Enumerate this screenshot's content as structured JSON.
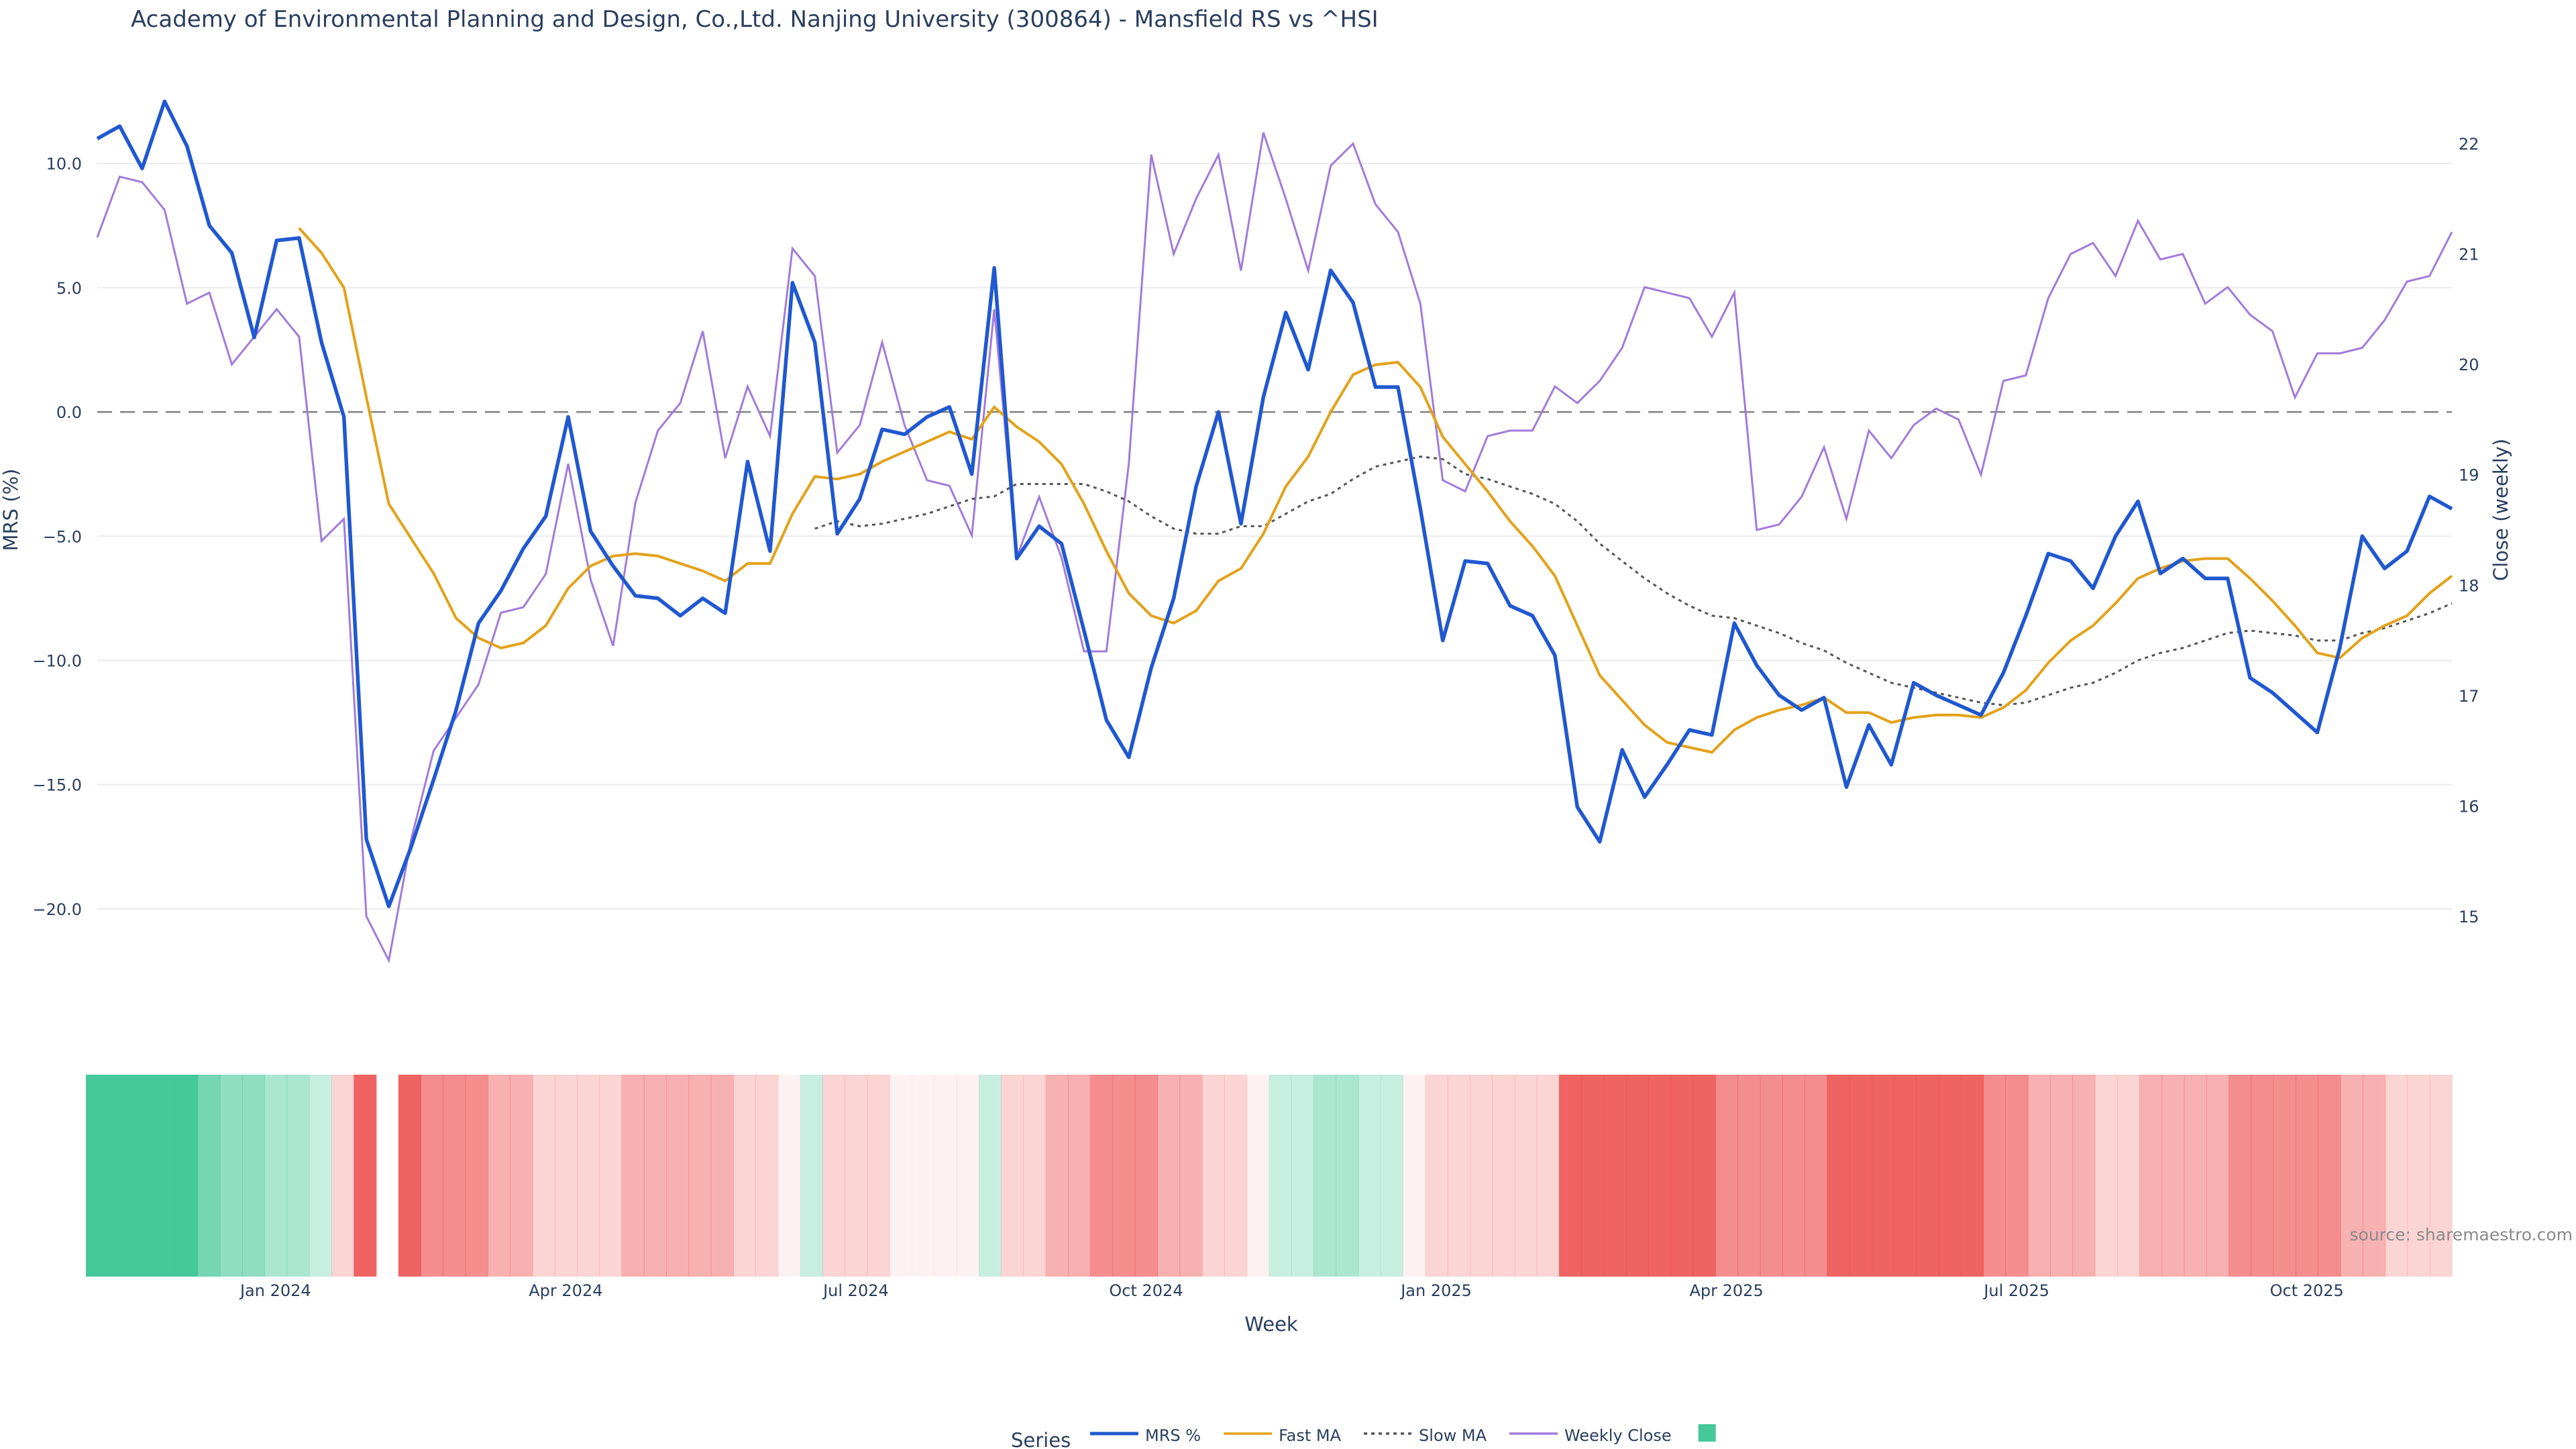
{
  "chart_data": {
    "type": "line",
    "title": "Academy of Environmental Planning and Design, Co.,Ltd. Nanjing University (300864) - Mansfield RS vs ^HSI",
    "xlabel": "Week",
    "ylabel_left": "MRS (%)",
    "ylabel_right": "Close (weekly)",
    "ylim_left": [
      -22.3,
      12.8
    ],
    "ylim_right": [
      14.55,
      22.45
    ],
    "left_ticks": [
      10,
      5,
      0,
      -5,
      -10,
      -15,
      -20
    ],
    "left_tick_labels": [
      "10.0",
      "5.0",
      "0.0",
      "−5.0",
      "−10.0",
      "−15.0",
      "−20.0"
    ],
    "right_ticks": [
      15,
      16,
      17,
      18,
      19,
      20,
      21,
      22
    ],
    "right_tick_labels": [
      "15",
      "16",
      "17",
      "18",
      "19",
      "20",
      "21",
      "22"
    ],
    "x_ticks": [
      8,
      21,
      34,
      47,
      60,
      73,
      86,
      99
    ],
    "x_tick_labels": [
      "Jan 2024",
      "Apr 2024",
      "Jul 2024",
      "Oct 2024",
      "Jan 2025",
      "Apr 2025",
      "Jul 2025",
      "Oct 2025"
    ],
    "zero_line": 0,
    "source": "source: sharemaestro.com",
    "legend_title": "Series",
    "mrs": [
      11.0,
      11.5,
      9.8,
      12.5,
      10.7,
      7.5,
      6.4,
      3.0,
      6.9,
      7.0,
      2.8,
      -0.2,
      -17.2,
      -19.9,
      -17.5,
      -14.8,
      -12.0,
      -8.5,
      -7.2,
      -5.5,
      -4.2,
      -0.2,
      -4.8,
      -6.2,
      -7.4,
      -7.5,
      -8.2,
      -7.5,
      -8.1,
      -2.0,
      -5.6,
      5.2,
      2.8,
      -4.9,
      -3.5,
      -0.7,
      -0.9,
      -0.2,
      0.2,
      -2.5,
      5.8,
      -5.9,
      -4.6,
      -5.3,
      -8.8,
      -12.4,
      -13.9,
      -10.3,
      -7.5,
      -3.0,
      0.0,
      -4.5,
      0.6,
      4.0,
      1.7,
      5.7,
      4.4,
      1.0,
      1.0,
      -3.9,
      -9.2,
      -6.0,
      -6.1,
      -7.8,
      -8.2,
      -9.8,
      -15.9,
      -17.3,
      -13.6,
      -15.5,
      -14.2,
      -12.8,
      -13.0,
      -8.5,
      -10.2,
      -11.4,
      -12.0,
      -11.5,
      -15.1,
      -12.6,
      -14.2,
      -10.9,
      -11.4,
      -11.8,
      -12.2,
      -10.5,
      -8.2,
      -5.7,
      -6.0,
      -7.1,
      -5.0,
      -3.6,
      -6.5,
      -5.9,
      -6.7,
      -6.7,
      -10.7,
      -11.3,
      -12.1,
      -12.9,
      -9.5,
      -5.0,
      -6.3,
      -5.6,
      -3.4,
      -3.9
    ],
    "fast_ma": [
      null,
      null,
      null,
      null,
      null,
      null,
      null,
      null,
      null,
      7.4,
      6.4,
      5.0,
      0.6,
      -3.7,
      -5.1,
      -6.5,
      -8.3,
      -9.1,
      -9.5,
      -9.3,
      -8.6,
      -7.1,
      -6.2,
      -5.8,
      -5.7,
      -5.8,
      -6.1,
      -6.4,
      -6.8,
      -6.1,
      -6.1,
      -4.1,
      -2.6,
      -2.7,
      -2.5,
      -2.0,
      -1.6,
      -1.2,
      -0.8,
      -1.1,
      0.2,
      -0.6,
      -1.2,
      -2.1,
      -3.7,
      -5.6,
      -7.3,
      -8.2,
      -8.5,
      -8.0,
      -6.8,
      -6.3,
      -4.9,
      -3.0,
      -1.8,
      0.0,
      1.5,
      1.9,
      2.0,
      1.0,
      -1.0,
      -2.1,
      -3.2,
      -4.4,
      -5.4,
      -6.6,
      -8.6,
      -10.6,
      -11.6,
      -12.6,
      -13.3,
      -13.5,
      -13.7,
      -12.8,
      -12.3,
      -12.0,
      -11.8,
      -11.5,
      -12.1,
      -12.1,
      -12.5,
      -12.3,
      -12.2,
      -12.2,
      -12.3,
      -11.9,
      -11.2,
      -10.1,
      -9.2,
      -8.6,
      -7.7,
      -6.7,
      -6.3,
      -6.0,
      -5.9,
      -5.9,
      -6.7,
      -7.6,
      -8.6,
      -9.7,
      -9.9,
      -9.1,
      -8.6,
      -8.2,
      -7.3,
      -6.6
    ],
    "slow_ma": [
      null,
      null,
      null,
      null,
      null,
      null,
      null,
      null,
      null,
      null,
      null,
      null,
      null,
      null,
      null,
      null,
      null,
      null,
      null,
      null,
      null,
      null,
      null,
      null,
      null,
      null,
      null,
      null,
      null,
      null,
      null,
      null,
      -4.7,
      -4.4,
      -4.6,
      -4.5,
      -4.3,
      -4.1,
      -3.8,
      -3.5,
      -3.4,
      -2.9,
      -2.9,
      -2.9,
      -2.9,
      -3.2,
      -3.6,
      -4.2,
      -4.7,
      -4.9,
      -4.9,
      -4.6,
      -4.6,
      -4.1,
      -3.6,
      -3.3,
      -2.7,
      -2.2,
      -2.0,
      -1.8,
      -1.9,
      -2.5,
      -2.7,
      -3.0,
      -3.3,
      -3.7,
      -4.4,
      -5.3,
      -6.0,
      -6.7,
      -7.3,
      -7.8,
      -8.2,
      -8.3,
      -8.6,
      -8.9,
      -9.3,
      -9.6,
      -10.1,
      -10.5,
      -10.9,
      -11.1,
      -11.3,
      -11.5,
      -11.7,
      -11.8,
      -11.7,
      -11.4,
      -11.1,
      -10.9,
      -10.5,
      -10.0,
      -9.7,
      -9.5,
      -9.2,
      -8.9,
      -8.8,
      -8.9,
      -9.0,
      -9.2,
      -9.2,
      -8.9,
      -8.7,
      -8.4,
      -8.1,
      -7.7
    ],
    "weekly_close": [
      21.15,
      21.7,
      21.65,
      21.4,
      20.55,
      20.65,
      20.0,
      20.25,
      20.5,
      20.25,
      18.4,
      18.6,
      15.0,
      14.6,
      15.7,
      16.5,
      16.8,
      17.1,
      17.75,
      17.8,
      18.1,
      19.1,
      18.05,
      17.45,
      18.75,
      19.4,
      19.65,
      20.3,
      19.15,
      19.8,
      19.35,
      21.05,
      20.8,
      19.2,
      19.45,
      20.2,
      19.45,
      18.95,
      18.9,
      18.45,
      20.5,
      18.25,
      18.8,
      18.25,
      17.4,
      17.4,
      19.1,
      21.9,
      21.0,
      21.5,
      21.9,
      20.85,
      22.1,
      21.5,
      20.85,
      21.8,
      22.0,
      21.45,
      21.2,
      20.55,
      18.95,
      18.85,
      19.35,
      19.4,
      19.4,
      19.8,
      19.65,
      19.85,
      20.15,
      20.7,
      20.65,
      20.6,
      20.25,
      20.65,
      18.5,
      18.55,
      18.8,
      19.25,
      18.6,
      19.4,
      19.15,
      19.45,
      19.6,
      19.5,
      19.0,
      19.85,
      19.9,
      20.6,
      21.0,
      21.1,
      20.8,
      21.3,
      20.95,
      21.0,
      20.55,
      20.7,
      20.45,
      20.3,
      19.7,
      20.1,
      20.1,
      20.15,
      20.4,
      20.75,
      20.8,
      21.2
    ],
    "momentum_strip": [
      5,
      5,
      5,
      5,
      5,
      4,
      3,
      3,
      2,
      2,
      1,
      -1,
      -4,
      null,
      -4,
      -3,
      -3,
      -3,
      -2,
      -2,
      -1,
      -1,
      -1,
      -1,
      -2,
      -2,
      -2,
      -2,
      -2,
      -1,
      -1,
      0,
      1,
      -1,
      -1,
      -1,
      0,
      0,
      0,
      0,
      1,
      -1,
      -1,
      -2,
      -2,
      -3,
      -3,
      -3,
      -2,
      -2,
      -1,
      -1,
      0,
      1,
      1,
      2,
      2,
      1,
      1,
      0,
      -1,
      -1,
      -1,
      -1,
      -1,
      -1,
      -4,
      -4,
      -4,
      -4,
      -4,
      -4,
      -4,
      -3,
      -3,
      -3,
      -3,
      -3,
      -4,
      -4,
      -4,
      -4,
      -4,
      -4,
      -4,
      -3,
      -3,
      -2,
      -2,
      -2,
      -1,
      -1,
      -2,
      -2,
      -2,
      -2,
      -3,
      -3,
      -3,
      -3,
      -3,
      -2,
      -2,
      -1,
      -1,
      -1
    ],
    "legend": [
      {
        "name": "MRS %",
        "color": "#2058d0",
        "dash": "solid"
      },
      {
        "name": "Fast MA",
        "color": "#e3a21a",
        "dash": "solid"
      },
      {
        "name": "Slow MA",
        "color": "#555555",
        "dash": "dot"
      },
      {
        "name": "Weekly Close",
        "color": "#a27bdc",
        "dash": "solid"
      },
      {
        "name": "",
        "color": "#45c89a",
        "dash": "box"
      }
    ]
  }
}
